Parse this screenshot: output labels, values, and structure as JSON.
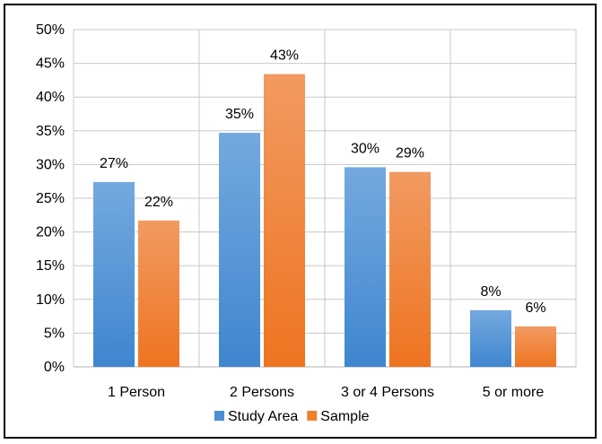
{
  "chart_data": {
    "type": "bar",
    "title": "",
    "xlabel": "",
    "ylabel": "",
    "categories": [
      "1 Person",
      "2 Persons",
      "3 or 4 Persons",
      "5 or more"
    ],
    "series": [
      {
        "name": "Study Area",
        "values": [
          27.4,
          34.7,
          29.6,
          8.4
        ],
        "labels": [
          "27%",
          "35%",
          "30%",
          "8%"
        ],
        "color": "#4a8fd4"
      },
      {
        "name": "Sample",
        "values": [
          21.7,
          43.4,
          28.9,
          6.0
        ],
        "labels": [
          "22%",
          "43%",
          "29%",
          "6%"
        ],
        "color": "#f0802a"
      }
    ],
    "ylim": [
      0,
      50
    ],
    "yticks": [
      "0%",
      "5%",
      "10%",
      "15%",
      "20%",
      "25%",
      "30%",
      "35%",
      "40%",
      "45%",
      "50%"
    ],
    "grid": true,
    "legend_position": "bottom"
  }
}
